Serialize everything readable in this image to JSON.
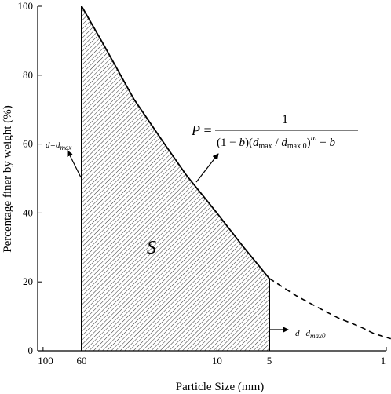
{
  "chart_data": {
    "type": "area",
    "xscale": "log-reversed",
    "xlabel": "Particle Size (mm)",
    "ylabel": "Percentage finer by weight (%)",
    "xlim": [
      100,
      1
    ],
    "ylim": [
      0,
      100
    ],
    "xticks": [
      {
        "value": 100,
        "label": "100"
      },
      {
        "value": 60,
        "label": "60"
      },
      {
        "value": 10,
        "label": "10"
      },
      {
        "value": 5,
        "label": "5"
      },
      {
        "value": 1,
        "label": "1"
      }
    ],
    "yticks": [
      0,
      20,
      40,
      60,
      80,
      100
    ],
    "series": [
      {
        "style": "solid",
        "x": [
          60,
          45,
          30,
          20,
          15,
          10,
          7,
          5
        ],
        "y": [
          100,
          89,
          73,
          60,
          51,
          40,
          30,
          21
        ]
      },
      {
        "style": "dashed",
        "x": [
          5,
          3.5,
          2.5,
          2,
          1.5,
          1.25,
          1
        ],
        "y": [
          21,
          16,
          12,
          9.5,
          7,
          5,
          3.5
        ]
      }
    ],
    "region_label": "S",
    "annotations": {
      "left_boundary": "d=d_max",
      "left_var": "d",
      "left_eq": "=",
      "left_sub": "max",
      "right_boundary": "d d_max0",
      "right_var": "d",
      "right_sub": "max0"
    },
    "formula": {
      "lhs": "P",
      "numerator": "1",
      "denominator": "(1 − b)(dmax / dmax0)^m + b"
    }
  }
}
